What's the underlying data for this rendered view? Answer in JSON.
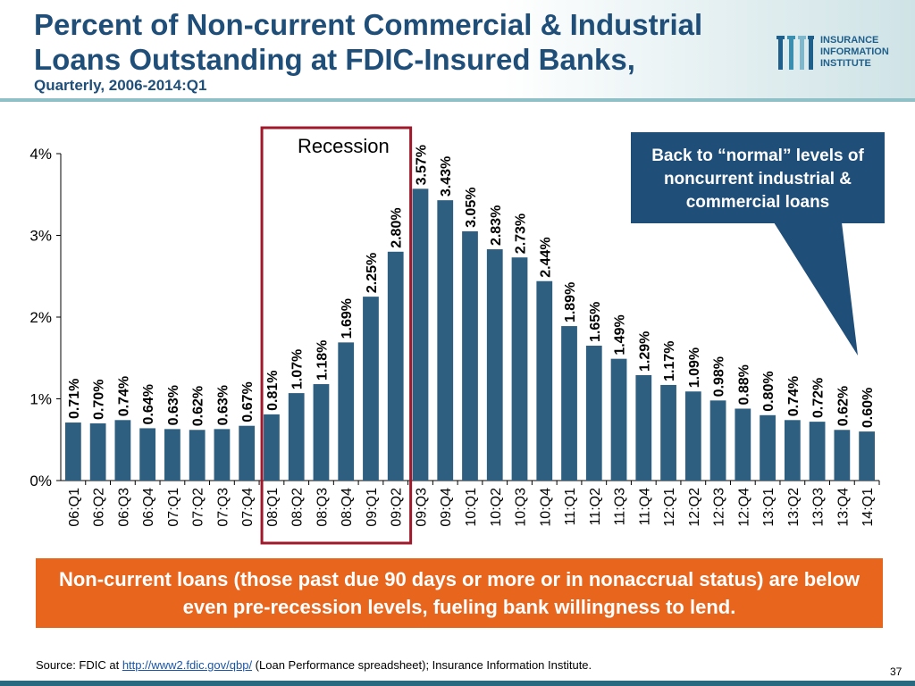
{
  "header": {
    "title": "Percent of Non-current Commercial & Industrial Loans Outstanding at FDIC-Insured Banks,",
    "subtitle": "Quarterly, 2006-2014:Q1"
  },
  "logo": {
    "lines": [
      "INSURANCE",
      "INFORMATION",
      "INSTITUTE"
    ],
    "colors": [
      "#1f5f8b",
      "#3a8fb0",
      "#7fb8cc"
    ]
  },
  "chart_data": {
    "type": "bar",
    "categories": [
      "06:Q1",
      "06:Q2",
      "06:Q3",
      "06:Q4",
      "07:Q1",
      "07:Q2",
      "07:Q3",
      "07:Q4",
      "08:Q1",
      "08:Q2",
      "08:Q3",
      "08:Q4",
      "09:Q1",
      "09:Q2",
      "09:Q3",
      "09:Q4",
      "10:Q1",
      "10:Q2",
      "10:Q3",
      "10:Q4",
      "11:Q1",
      "11:Q2",
      "11:Q3",
      "11:Q4",
      "12:Q1",
      "12:Q2",
      "12:Q3",
      "12:Q4",
      "13:Q1",
      "13:Q2",
      "13:Q3",
      "13:Q4",
      "14:Q1"
    ],
    "values": [
      0.71,
      0.7,
      0.74,
      0.64,
      0.63,
      0.62,
      0.63,
      0.67,
      0.81,
      1.07,
      1.18,
      1.69,
      2.25,
      2.8,
      3.57,
      3.43,
      3.05,
      2.83,
      2.73,
      2.44,
      1.89,
      1.65,
      1.49,
      1.29,
      1.17,
      1.09,
      0.98,
      0.88,
      0.8,
      0.74,
      0.72,
      0.62,
      0.6
    ],
    "data_labels": [
      "0.71%",
      "0.70%",
      "0.74%",
      "0.64%",
      "0.63%",
      "0.62%",
      "0.63%",
      "0.67%",
      "0.81%",
      "1.07%",
      "1.18%",
      "1.69%",
      "2.25%",
      "2.80%",
      "3.57%",
      "3.43%",
      "3.05%",
      "2.83%",
      "2.73%",
      "2.44%",
      "1.89%",
      "1.65%",
      "1.49%",
      "1.29%",
      "1.17%",
      "1.09%",
      "0.98%",
      "0.88%",
      "0.80%",
      "0.74%",
      "0.72%",
      "0.62%",
      "0.60%"
    ],
    "y_ticks": [
      0,
      1,
      2,
      3,
      4
    ],
    "y_tick_labels": [
      "0%",
      "1%",
      "2%",
      "3%",
      "4%"
    ],
    "ylim": [
      0,
      4
    ],
    "grid": false,
    "bar_color": "#2e5f80",
    "recession": {
      "label": "Recession",
      "from_category": "07:Q4",
      "to_category": "09:Q2",
      "color": "#a0182a"
    }
  },
  "callout": {
    "text": "Back to “normal” levels of noncurrent industrial & commercial loans"
  },
  "note": {
    "text": "Non-current loans (those past due 90 days or more or in nonaccrual status) are below even pre-recession levels, fueling bank willingness to lend."
  },
  "footer": {
    "source_prefix": "Source:  FDIC at ",
    "source_link": "http://www2.fdic.gov/qbp/",
    "source_suffix": " (Loan Performance spreadsheet); Insurance Information Institute.",
    "page_number": "37"
  }
}
